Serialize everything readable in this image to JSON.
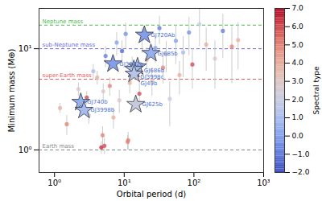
{
  "chart_data": {
    "type": "scatter",
    "xlabel": "Orbital period (d)",
    "ylabel": "Minimum mass (M⊕)",
    "log": true,
    "xlim": [
      0.6,
      1000
    ],
    "ylim": [
      0.6,
      25
    ],
    "xticks": [
      {
        "value": 1,
        "label": "10⁰"
      },
      {
        "value": 10,
        "label": "10¹"
      },
      {
        "value": 100,
        "label": "10²"
      },
      {
        "value": 1000,
        "label": "10³"
      }
    ],
    "yticks": [
      {
        "value": 1,
        "label": "10⁰"
      },
      {
        "value": 10,
        "label": "10¹"
      }
    ],
    "reference_lines": [
      {
        "name": "Neptune mass",
        "value": 17.1,
        "color": "#4cbb4c"
      },
      {
        "name": "sub-Neptune mass",
        "value": 10,
        "color": "#6a6ad8"
      },
      {
        "name": "super-Earth mass",
        "value": 5,
        "color": "#e85a5a"
      },
      {
        "name": "Earth mass",
        "value": 1,
        "color": "#888888"
      }
    ],
    "points": {
      "x": [
        1.2,
        1.5,
        2.2,
        2.9,
        3.1,
        3.6,
        4.1,
        4.7,
        5.0,
        5.4,
        6.2,
        7.0,
        7.8,
        8.5,
        9.3,
        10.5,
        11.2,
        12.0,
        13.0,
        16.5,
        18.0,
        21.0,
        25.0,
        28.0,
        32.0,
        36.0,
        40.0,
        45.0,
        55.0,
        62.0,
        70.0,
        85.0,
        95.0,
        120.0,
        150.0,
        200.0,
        260.0,
        350.0,
        430.0,
        4.9,
        5.2,
        11.4
      ],
      "y": [
        2.6,
        1.8,
        4.0,
        3.3,
        2.2,
        6.0,
        5.2,
        1.06,
        3.8,
        8.5,
        4.3,
        2.1,
        11.5,
        3.1,
        9.5,
        14.0,
        1.2,
        4.6,
        6.8,
        3.6,
        12.5,
        7.8,
        4.9,
        10.2,
        16.0,
        6.5,
        8.8,
        3.2,
        12.0,
        5.5,
        9.2,
        14.5,
        7.0,
        17.5,
        11.0,
        8.0,
        15.0,
        10.5,
        12.2,
        1.4,
        1.1,
        1.25
      ],
      "spectral_type": [
        4,
        5,
        3,
        6,
        2,
        1,
        4,
        6.5,
        3,
        -1,
        5,
        4,
        0,
        3,
        -1.5,
        -0.5,
        5,
        4,
        2,
        6,
        1,
        4,
        3,
        0,
        -1,
        5,
        3,
        2,
        0,
        4,
        1,
        -0.5,
        6,
        2,
        4,
        3,
        -1,
        5,
        4,
        5,
        6,
        5
      ],
      "y_err": [
        0.3,
        0.4,
        0.6,
        0.5,
        0.4,
        1.0,
        0.8,
        0.15,
        0.7,
        2.0,
        0.9,
        0.5,
        3.0,
        0.8,
        2.5,
        4.0,
        0.2,
        1.0,
        1.5,
        1.2,
        3.5,
        2.5,
        1.5,
        3.0,
        5.0,
        2.0,
        3.0,
        1.5,
        5.0,
        2.0,
        4.0,
        6.0,
        3.0,
        7.0,
        5.0,
        4.0,
        7.0,
        6.0,
        6.0,
        0.3,
        0.2,
        0.25
      ]
    },
    "highlighted": {
      "marker": "star",
      "labels": [
        "GJ720Ab",
        "GJ685b",
        "GJ3942b",
        "GJ686b",
        "GJ3998c",
        "GJ49b",
        "GJ625b",
        "GJ740b",
        "GJ3998b"
      ],
      "x": [
        19.47,
        24.16,
        6.9,
        15.53,
        13.74,
        13.85,
        14.63,
        2.38,
        2.65
      ],
      "y": [
        13.64,
        9.0,
        7.1,
        6.64,
        6.26,
        5.63,
        2.82,
        2.96,
        2.47
      ],
      "spectral_type": [
        0,
        0.5,
        0,
        1,
        1,
        1.5,
        2,
        0.5,
        1
      ]
    },
    "colorbar": {
      "label": "Spectral type",
      "range": [
        -2,
        7
      ],
      "ticks": [
        {
          "value": -2,
          "label": "−2.0"
        },
        {
          "value": -1,
          "label": "−1.0"
        },
        {
          "value": 0,
          "label": "0.0"
        },
        {
          "value": 1,
          "label": "1.0"
        },
        {
          "value": 2,
          "label": "2.0"
        },
        {
          "value": 3,
          "label": "3.0"
        },
        {
          "value": 4,
          "label": "4.0"
        },
        {
          "value": 5,
          "label": "5.0"
        },
        {
          "value": 6,
          "label": "6.0"
        },
        {
          "value": 7,
          "label": "7.0"
        }
      ]
    }
  }
}
